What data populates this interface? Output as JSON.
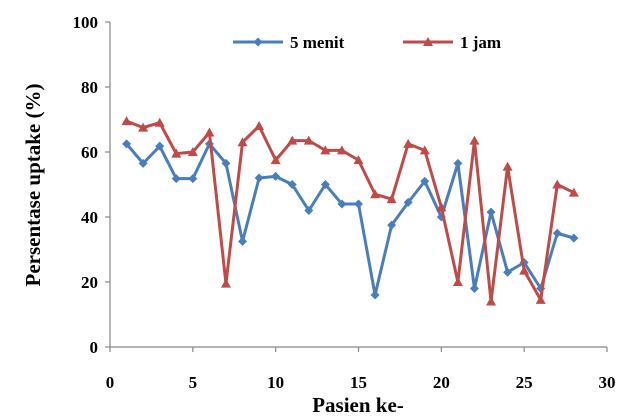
{
  "chart_data": {
    "type": "line",
    "title": "",
    "xlabel": "Pasien ke-",
    "ylabel": "Persentase uptake (%)",
    "xlim": [
      0,
      30
    ],
    "ylim": [
      0,
      100
    ],
    "xticks": [
      "0",
      "5",
      "10",
      "15",
      "20",
      "25",
      "30"
    ],
    "yticks": [
      "0",
      "20",
      "40",
      "60",
      "80",
      "100"
    ],
    "grid": false,
    "legend_position": "top",
    "x": [
      1,
      2,
      3,
      4,
      5,
      6,
      7,
      8,
      9,
      10,
      11,
      12,
      13,
      14,
      15,
      16,
      17,
      18,
      19,
      20,
      21,
      22,
      23,
      24,
      25,
      26,
      27,
      28
    ],
    "series": [
      {
        "name": "5 menit",
        "color": "#4a7ebb",
        "marker": "diamond",
        "values": [
          62.5,
          56.5,
          61.8,
          51.8,
          51.8,
          62.5,
          56.5,
          32.5,
          52.0,
          52.5,
          50.0,
          42.0,
          50.0,
          44.0,
          44.0,
          16.0,
          37.5,
          44.5,
          51.0,
          40.0,
          56.5,
          18.0,
          41.5,
          23.0,
          26.0,
          18.0,
          35.0,
          33.5
        ]
      },
      {
        "name": "1 jam",
        "color": "#be4b48",
        "marker": "triangle",
        "values": [
          69.5,
          67.5,
          69.0,
          59.5,
          60.0,
          66.0,
          19.5,
          63.0,
          68.0,
          57.5,
          63.5,
          63.5,
          60.5,
          60.5,
          57.5,
          47.0,
          45.5,
          62.5,
          60.5,
          43.0,
          20.0,
          63.5,
          14.0,
          55.5,
          23.5,
          14.5,
          50.0,
          47.5
        ]
      }
    ]
  }
}
